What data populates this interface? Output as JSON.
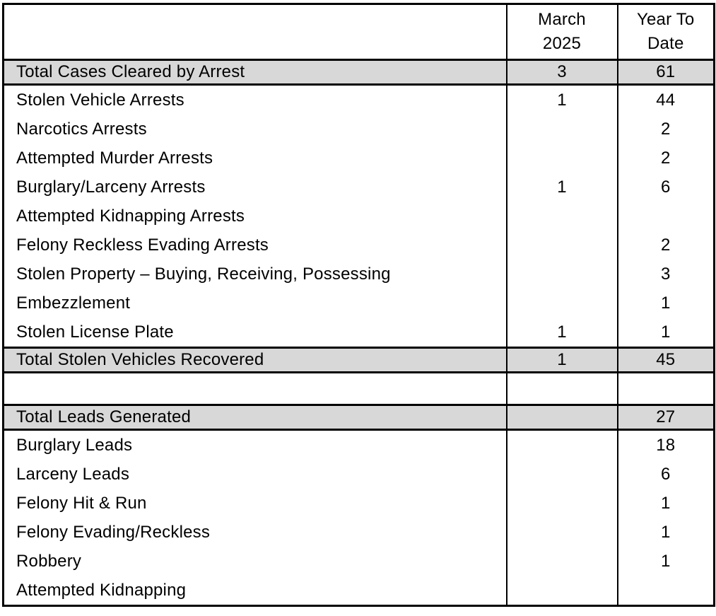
{
  "table": {
    "header": {
      "label_col": "",
      "march": [
        "March",
        "2025"
      ],
      "year_to_date": [
        "Year To",
        "Date"
      ]
    },
    "colors": {
      "shaded_row": "#d8d8d8",
      "border": "#000000",
      "text": "#000000"
    },
    "rows": [
      {
        "type": "total",
        "label": "Total Cases Cleared by Arrest",
        "march": "3",
        "ytd": "61"
      },
      {
        "type": "detail",
        "label": "Stolen Vehicle Arrests",
        "march": "1",
        "ytd": "44"
      },
      {
        "type": "detail",
        "label": "Narcotics Arrests",
        "march": "",
        "ytd": "2"
      },
      {
        "type": "detail",
        "label": "Attempted Murder Arrests",
        "march": "",
        "ytd": "2"
      },
      {
        "type": "detail",
        "label": "Burglary/Larceny Arrests",
        "march": "1",
        "ytd": "6"
      },
      {
        "type": "detail",
        "label": "Attempted Kidnapping Arrests",
        "march": "",
        "ytd": ""
      },
      {
        "type": "detail",
        "label": "Felony Reckless Evading Arrests",
        "march": "",
        "ytd": "2"
      },
      {
        "type": "detail",
        "label": "Stolen Property – Buying, Receiving, Possessing",
        "march": "",
        "ytd": "3"
      },
      {
        "type": "detail",
        "label": "Embezzlement",
        "march": "",
        "ytd": "1"
      },
      {
        "type": "detail",
        "label": "Stolen License Plate",
        "march": "1",
        "ytd": "1"
      },
      {
        "type": "total",
        "label": "Total Stolen Vehicles Recovered",
        "march": "1",
        "ytd": "45"
      },
      {
        "type": "spacer",
        "label": "",
        "march": "",
        "ytd": ""
      },
      {
        "type": "total",
        "label": "Total Leads Generated",
        "march": "",
        "ytd": "27"
      },
      {
        "type": "detail",
        "label": "Burglary Leads",
        "march": "",
        "ytd": "18"
      },
      {
        "type": "detail",
        "label": "Larceny Leads",
        "march": "",
        "ytd": "6"
      },
      {
        "type": "detail",
        "label": "Felony Hit & Run",
        "march": "",
        "ytd": "1"
      },
      {
        "type": "detail",
        "label": "Felony Evading/Reckless",
        "march": "",
        "ytd": "1"
      },
      {
        "type": "detail",
        "label": "Robbery",
        "march": "",
        "ytd": "1"
      },
      {
        "type": "detail",
        "label": "Attempted Kidnapping",
        "march": "",
        "ytd": ""
      }
    ]
  }
}
